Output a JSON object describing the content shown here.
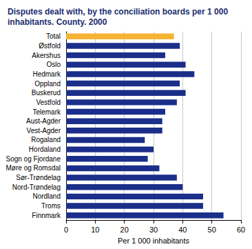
{
  "chart_data": {
    "type": "bar",
    "orientation": "horizontal",
    "title": "Disputes dealt with, by the conciliation boards per 1 000 inhabitants. County. 2000",
    "x_label": "Per 1 000 inhabitants",
    "categories": [
      "Total",
      "Østfold",
      "Akershus",
      "Oslo",
      "Hedmark",
      "Oppland",
      "Buskerud",
      "Vestfold",
      "Telemark",
      "Aust-Agder",
      "Vest-Agder",
      "Rogaland",
      "Hordaland",
      "Sogn og Fjordane",
      "Møre og Romsdal",
      "Sør-Trøndelag",
      "Nord-Trøndelag",
      "Nordland",
      "Troms",
      "Finnmark"
    ],
    "values": [
      37,
      39,
      34,
      41,
      44,
      39,
      41,
      38,
      34,
      33,
      33,
      27,
      30,
      28,
      32,
      38,
      40,
      47,
      47,
      54
    ],
    "colors": [
      "#f5b335",
      "#1a2e8a",
      "#1a2e8a",
      "#1a2e8a",
      "#1a2e8a",
      "#1a2e8a",
      "#1a2e8a",
      "#1a2e8a",
      "#1a2e8a",
      "#1a2e8a",
      "#1a2e8a",
      "#1a2e8a",
      "#1a2e8a",
      "#1a2e8a",
      "#1a2e8a",
      "#1a2e8a",
      "#1a2e8a",
      "#1a2e8a",
      "#1a2e8a",
      "#1a2e8a"
    ],
    "xlim": [
      0,
      60
    ],
    "xticks": [
      0,
      10,
      20,
      30,
      40,
      50,
      60
    ],
    "grid": true
  }
}
